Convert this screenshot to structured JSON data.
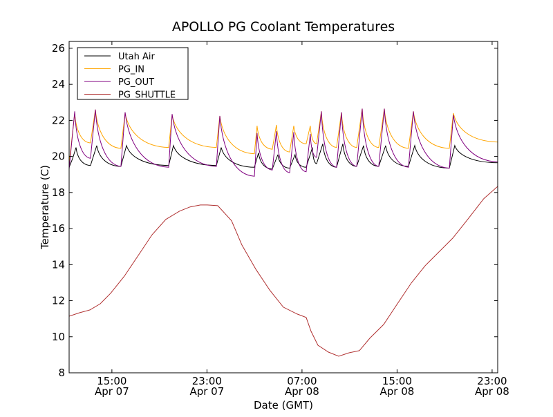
{
  "chart_data": {
    "type": "line",
    "title": "APOLLO PG Coolant Temperatures",
    "xlabel": "Date (GMT)",
    "ylabel": "Temperature (C)",
    "x_units": "hours since Apr 07 00:00 GMT",
    "xlim": [
      11.4,
      47.47
    ],
    "ylim": [
      8,
      26.38
    ],
    "grid": false,
    "legend_position": "top-left",
    "yticks": [
      8,
      10,
      12,
      14,
      16,
      18,
      20,
      22,
      24,
      26
    ],
    "xticks": [
      {
        "value": 15,
        "time": "15:00",
        "date": "Apr 07"
      },
      {
        "value": 23,
        "time": "23:00",
        "date": "Apr 07"
      },
      {
        "value": 31,
        "time": "07:00",
        "date": "Apr 08"
      },
      {
        "value": 39,
        "time": "15:00",
        "date": "Apr 08"
      },
      {
        "value": 47,
        "time": "23:00",
        "date": "Apr 08"
      }
    ],
    "series": [
      {
        "name": "Utah Air",
        "color": "#000000",
        "style": "saw",
        "points": [
          [
            11.4,
            19.4
          ],
          [
            11.7,
            19.9
          ],
          [
            11.98,
            20.5
          ],
          [
            13.2,
            19.5
          ],
          [
            13.73,
            20.6
          ],
          [
            15.76,
            19.45
          ],
          [
            16.23,
            20.6
          ],
          [
            19.78,
            19.5
          ],
          [
            20.18,
            20.6
          ],
          [
            23.79,
            19.5
          ],
          [
            24.2,
            20.5
          ],
          [
            26.99,
            19.4
          ],
          [
            27.34,
            20.2
          ],
          [
            28.5,
            19.3
          ],
          [
            28.97,
            20.1
          ],
          [
            29.96,
            19.35
          ],
          [
            30.42,
            20.1
          ],
          [
            31.35,
            19.4
          ],
          [
            31.88,
            20.5
          ],
          [
            32.23,
            19.6
          ],
          [
            32.75,
            20.7
          ],
          [
            33.91,
            19.4
          ],
          [
            34.44,
            20.7
          ],
          [
            35.6,
            19.45
          ],
          [
            36.18,
            20.6
          ],
          [
            37.46,
            19.45
          ],
          [
            38.04,
            20.6
          ],
          [
            39.96,
            19.45
          ],
          [
            40.49,
            20.6
          ],
          [
            43.4,
            19.35
          ],
          [
            43.86,
            20.6
          ],
          [
            47.47,
            19.65
          ]
        ]
      },
      {
        "name": "PG_IN",
        "color": "#ffa500",
        "style": "saw",
        "points": [
          [
            11.4,
            19.6
          ],
          [
            11.87,
            22.4
          ],
          [
            13.2,
            20.75
          ],
          [
            13.61,
            22.6
          ],
          [
            15.76,
            20.45
          ],
          [
            16.11,
            22.4
          ],
          [
            19.78,
            20.5
          ],
          [
            20.07,
            22.3
          ],
          [
            23.79,
            20.5
          ],
          [
            24.08,
            22.25
          ],
          [
            26.99,
            20.15
          ],
          [
            27.22,
            21.7
          ],
          [
            28.5,
            20.4
          ],
          [
            28.85,
            21.75
          ],
          [
            29.96,
            20.25
          ],
          [
            30.31,
            21.7
          ],
          [
            31.35,
            20.7
          ],
          [
            31.7,
            21.7
          ],
          [
            32.23,
            20.7
          ],
          [
            32.63,
            22.5
          ],
          [
            33.91,
            20.5
          ],
          [
            34.32,
            22.45
          ],
          [
            35.6,
            20.5
          ],
          [
            36.07,
            22.65
          ],
          [
            37.46,
            20.5
          ],
          [
            37.93,
            22.65
          ],
          [
            39.96,
            20.45
          ],
          [
            40.37,
            22.5
          ],
          [
            43.4,
            20.45
          ],
          [
            43.74,
            22.4
          ],
          [
            47.47,
            20.8
          ]
        ]
      },
      {
        "name": "PG_OUT",
        "color": "#800080",
        "style": "saw",
        "points": [
          [
            11.4,
            19.3
          ],
          [
            11.87,
            22.5
          ],
          [
            13.2,
            19.9
          ],
          [
            13.61,
            22.6
          ],
          [
            15.76,
            19.45
          ],
          [
            16.11,
            22.45
          ],
          [
            19.78,
            19.4
          ],
          [
            20.07,
            22.35
          ],
          [
            23.79,
            19.45
          ],
          [
            24.08,
            22.25
          ],
          [
            26.99,
            18.9
          ],
          [
            27.22,
            21.3
          ],
          [
            28.5,
            19.25
          ],
          [
            28.85,
            21.4
          ],
          [
            29.96,
            19.1
          ],
          [
            30.31,
            21.35
          ],
          [
            31.35,
            19.15
          ],
          [
            31.7,
            21.25
          ],
          [
            32.23,
            19.95
          ],
          [
            32.63,
            22.5
          ],
          [
            33.91,
            19.4
          ],
          [
            34.32,
            22.45
          ],
          [
            35.6,
            19.45
          ],
          [
            36.07,
            22.65
          ],
          [
            37.46,
            19.45
          ],
          [
            37.93,
            22.65
          ],
          [
            39.96,
            19.4
          ],
          [
            40.37,
            22.5
          ],
          [
            43.4,
            19.35
          ],
          [
            43.74,
            22.3
          ],
          [
            47.47,
            19.7
          ]
        ]
      },
      {
        "name": "PG_SHUTTLE",
        "color": "#b03030",
        "style": "line",
        "points": [
          [
            11.4,
            11.14
          ],
          [
            12.27,
            11.33
          ],
          [
            13.15,
            11.49
          ],
          [
            14.02,
            11.83
          ],
          [
            14.89,
            12.41
          ],
          [
            16.05,
            13.36
          ],
          [
            17.22,
            14.51
          ],
          [
            18.38,
            15.66
          ],
          [
            19.54,
            16.51
          ],
          [
            20.71,
            16.97
          ],
          [
            21.58,
            17.2
          ],
          [
            22.45,
            17.31
          ],
          [
            23.03,
            17.31
          ],
          [
            23.91,
            17.27
          ],
          [
            25.07,
            16.43
          ],
          [
            25.94,
            15.09
          ],
          [
            27.11,
            13.75
          ],
          [
            28.27,
            12.6
          ],
          [
            29.43,
            11.64
          ],
          [
            30.6,
            11.26
          ],
          [
            31.35,
            11.07
          ],
          [
            31.76,
            10.3
          ],
          [
            32.34,
            9.53
          ],
          [
            33.22,
            9.15
          ],
          [
            34.09,
            8.92
          ],
          [
            34.96,
            9.11
          ],
          [
            35.83,
            9.23
          ],
          [
            36.71,
            9.92
          ],
          [
            37.87,
            10.68
          ],
          [
            39.03,
            11.83
          ],
          [
            40.2,
            12.98
          ],
          [
            41.36,
            13.94
          ],
          [
            42.52,
            14.7
          ],
          [
            43.69,
            15.47
          ],
          [
            44.85,
            16.43
          ],
          [
            46.3,
            17.66
          ],
          [
            47.47,
            18.34
          ]
        ]
      }
    ]
  }
}
